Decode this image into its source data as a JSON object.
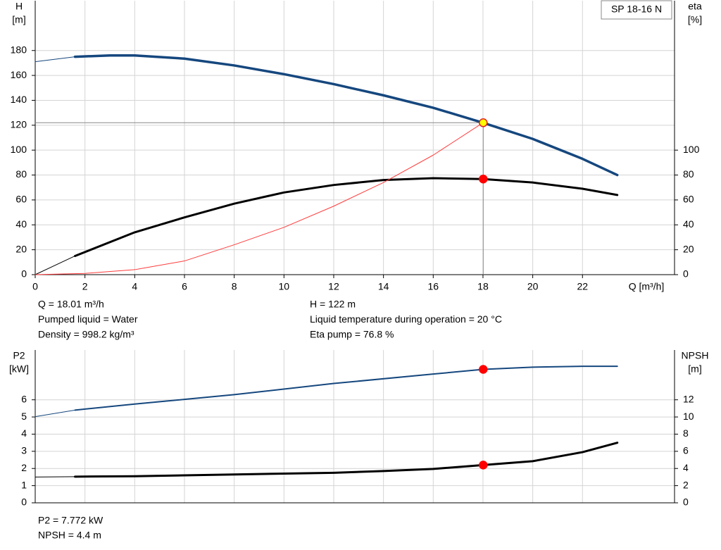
{
  "chart_data": [
    {
      "type": "line",
      "legend": "SP 18-16 N",
      "y_label": "H",
      "y_unit": "[m]",
      "y2_label": "eta",
      "y2_unit": "[%]",
      "x_label": "Q [m³/h]",
      "xlim": [
        0,
        25.7
      ],
      "ylim": [
        0,
        220
      ],
      "y2lim": [
        0,
        220
      ],
      "xticks": [
        0,
        2,
        4,
        6,
        8,
        10,
        12,
        14,
        16,
        18,
        20,
        22
      ],
      "yticks": [
        0,
        20,
        40,
        60,
        80,
        100,
        120,
        140,
        160,
        180
      ],
      "y2ticks": [
        0,
        20,
        40,
        60,
        80,
        100
      ],
      "grid": true,
      "series": [
        {
          "color": "#15477e",
          "line_width": 1,
          "x": [
            0,
            1.6
          ],
          "values": [
            171,
            175
          ]
        },
        {
          "color": "#15477e",
          "line_width": 3.5,
          "x": [
            1.6,
            3,
            4,
            6,
            8,
            10,
            12,
            14,
            16,
            18,
            20,
            22,
            23.4
          ],
          "values": [
            175,
            176,
            176,
            173.5,
            168,
            161,
            153,
            144,
            134,
            122,
            109,
            93,
            80
          ]
        },
        {
          "color": "#000000",
          "line_width": 1,
          "axis": "y2",
          "x": [
            0,
            1.6
          ],
          "values": [
            0,
            15
          ]
        },
        {
          "color": "#000000",
          "line_width": 3,
          "axis": "y2",
          "x": [
            1.6,
            4,
            6,
            8,
            10,
            12,
            14,
            16,
            18,
            20,
            22,
            23.4
          ],
          "values": [
            15,
            34,
            46,
            57,
            66,
            72,
            76,
            77.5,
            76.8,
            74,
            69,
            64
          ]
        },
        {
          "color": "#ff3b3b",
          "line_width": 1,
          "x": [
            0,
            2,
            4,
            6,
            8,
            10,
            12,
            14,
            16,
            18
          ],
          "values": [
            0,
            1,
            4,
            11,
            24,
            38,
            55,
            74,
            96,
            122
          ]
        }
      ],
      "points": [
        {
          "x": 18.01,
          "y": 122,
          "color": "#ffff00",
          "guide": true
        },
        {
          "x": 18.01,
          "y": 76.8,
          "color": "#ff0000",
          "axis": "y2"
        }
      ],
      "annotations": [
        [
          "Q = 18.01 m³/h",
          "Pumped liquid = Water",
          "Density = 998.2 kg/m³"
        ],
        [
          "H = 122 m",
          "Liquid temperature during operation = 20 °C",
          "Eta pump = 76.8 %"
        ]
      ]
    },
    {
      "type": "line",
      "y_label": "P2",
      "y_unit": "[kW]",
      "y2_label": "NPSH",
      "y2_unit": "[m]",
      "xlim": [
        0,
        25.7
      ],
      "ylim": [
        0,
        8.9
      ],
      "y2lim": [
        0,
        17.8
      ],
      "yticks": [
        0,
        1,
        2,
        3,
        4,
        5,
        6
      ],
      "y2ticks": [
        0,
        2,
        4,
        6,
        8,
        10,
        12
      ],
      "grid": true,
      "series": [
        {
          "color": "#15477e",
          "line_width": 1,
          "x": [
            0,
            1.6
          ],
          "values": [
            5.02,
            5.4
          ]
        },
        {
          "color": "#15477e",
          "line_width": 2,
          "x": [
            1.6,
            4,
            8,
            12,
            16,
            18,
            20,
            22,
            23.4
          ],
          "values": [
            5.4,
            5.75,
            6.3,
            6.95,
            7.5,
            7.77,
            7.9,
            7.95,
            7.95
          ]
        },
        {
          "color": "#000000",
          "line_width": 1,
          "axis": "y2",
          "x": [
            0,
            1.6
          ],
          "values": [
            3.0,
            3.05
          ]
        },
        {
          "color": "#000000",
          "line_width": 3,
          "axis": "y2",
          "x": [
            1.6,
            4,
            8,
            12,
            14,
            16,
            18,
            20,
            22,
            23.4
          ],
          "values": [
            3.05,
            3.1,
            3.3,
            3.5,
            3.7,
            3.95,
            4.4,
            4.85,
            5.9,
            7.0
          ]
        }
      ],
      "points": [
        {
          "x": 18.01,
          "y": 7.772,
          "color": "#ff0000"
        },
        {
          "x": 18.01,
          "y": 4.4,
          "color": "#ff0000",
          "axis": "y2"
        }
      ],
      "annotations": [
        [
          "P2 = 7.772 kW",
          "NPSH = 4.4 m"
        ]
      ]
    }
  ]
}
